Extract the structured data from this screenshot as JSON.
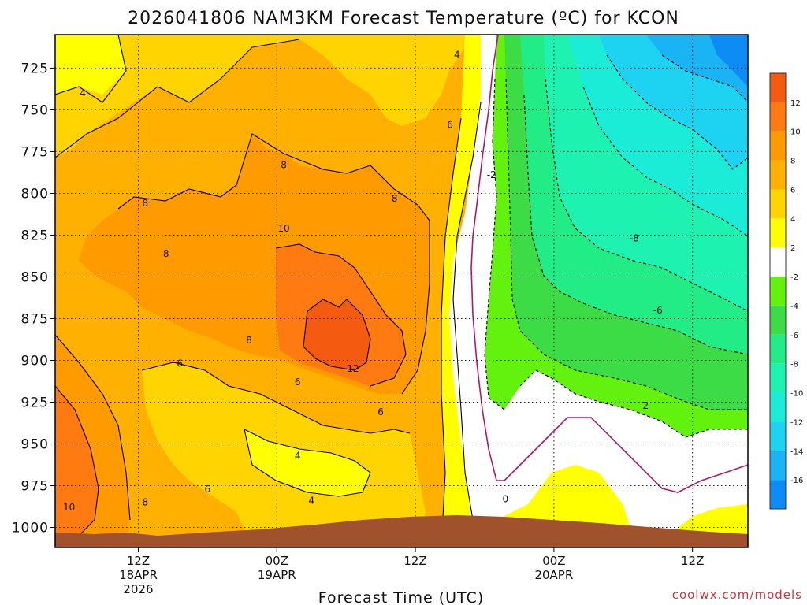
{
  "chart_data": {
    "type": "heatmap",
    "title": "2026041806 NAM3KM Forecast Temperature (ºC) for KCON",
    "xlabel": "Forecast Time (UTC)",
    "ylabel": "",
    "credit": "coolwx.com/models",
    "y_axis": {
      "units": "hPa",
      "inverted": true,
      "range": [
        705,
        1012
      ],
      "ticks": [
        "725",
        "750",
        "775",
        "800",
        "825",
        "850",
        "875",
        "900",
        "925",
        "950",
        "975",
        "1000"
      ]
    },
    "x_axis": {
      "units": "forecast hours from 2026041806",
      "range": [
        0,
        50
      ],
      "ticks": [
        {
          "hour": 6,
          "line1": "12Z",
          "line2": "18APR",
          "line3": "2026"
        },
        {
          "hour": 16,
          "line1": "00Z",
          "line2": "19APR",
          "line3": ""
        },
        {
          "hour": 26,
          "line1": "12Z",
          "line2": "",
          "line3": ""
        },
        {
          "hour": 36,
          "line1": "00Z",
          "line2": "20APR",
          "line3": ""
        },
        {
          "hour": 46,
          "line1": "12Z",
          "line2": "",
          "line3": ""
        }
      ]
    },
    "colorbar": {
      "levels": [
        -18,
        -16,
        -14,
        -12,
        -10,
        -8,
        -6,
        -4,
        -2,
        2,
        4,
        6,
        8,
        10,
        12,
        14
      ],
      "tick_labels": [
        "12",
        "10",
        "8",
        "6",
        "4",
        "2",
        "-2",
        "-4",
        "-6",
        "-8",
        "-10",
        "-12",
        "-14",
        "-16"
      ],
      "tick_values": [
        12,
        10,
        8,
        6,
        4,
        2,
        -2,
        -4,
        -6,
        -8,
        -10,
        -12,
        -14,
        -16
      ],
      "colors": [
        "#0c8cf4",
        "#1ab4f4",
        "#1ed2f2",
        "#1aecd8",
        "#1ef2b0",
        "#22ec86",
        "#3cdc46",
        "#62f20e",
        "#ffffff",
        "#ffff00",
        "#ffd400",
        "#ffb000",
        "#ff9a00",
        "#ff7a10",
        "#f45a10"
      ]
    },
    "contour_labels": [
      {
        "text": "4",
        "hour": 2,
        "p": 740
      },
      {
        "text": "8",
        "hour": 16.5,
        "p": 783
      },
      {
        "text": "8",
        "hour": 6.5,
        "p": 806
      },
      {
        "text": "8",
        "hour": 24.5,
        "p": 803
      },
      {
        "text": "10",
        "hour": 16.5,
        "p": 821
      },
      {
        "text": "8",
        "hour": 8,
        "p": 836
      },
      {
        "text": "8",
        "hour": 14,
        "p": 888
      },
      {
        "text": "12",
        "hour": 21.5,
        "p": 905
      },
      {
        "text": "6",
        "hour": 9,
        "p": 902
      },
      {
        "text": "6",
        "hour": 17.5,
        "p": 913
      },
      {
        "text": "6",
        "hour": 23.5,
        "p": 931
      },
      {
        "text": "4",
        "hour": 17.5,
        "p": 957
      },
      {
        "text": "4",
        "hour": 18.5,
        "p": 984
      },
      {
        "text": "6",
        "hour": 11,
        "p": 977
      },
      {
        "text": "8",
        "hour": 6.5,
        "p": 985
      },
      {
        "text": "10",
        "hour": 1,
        "p": 988
      },
      {
        "text": "4",
        "hour": 29,
        "p": 717
      },
      {
        "text": "6",
        "hour": 28.5,
        "p": 759
      },
      {
        "text": "-2",
        "hour": 31.5,
        "p": 789
      },
      {
        "text": "0",
        "hour": 32.5,
        "p": 983
      },
      {
        "text": "-8",
        "hour": 41.8,
        "p": 827
      },
      {
        "text": "-6",
        "hour": 43.5,
        "p": 870
      },
      {
        "text": "-2",
        "hour": 42.5,
        "p": 927
      }
    ]
  }
}
